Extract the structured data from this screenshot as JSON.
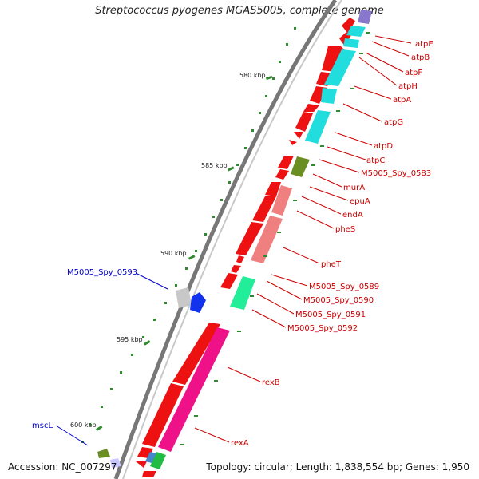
{
  "title": "Streptococcus pyogenes MGAS5005, complete genome",
  "accession": "Accession: NC_007297",
  "summary": "Topology: circular; Length: 1,838,554 bp; Genes: 1,950",
  "colors": {
    "backbone": "#888888",
    "label_red": "#cc0000",
    "label_blue": "#0000cc",
    "tick": "#2e8b2e"
  },
  "kbp_ticks": [
    {
      "kbp": 580,
      "label": "580 kbp"
    },
    {
      "kbp": 585,
      "label": "585 kbp"
    },
    {
      "kbp": 590,
      "label": "590 kbp"
    },
    {
      "kbp": 595,
      "label": "595 kbp"
    },
    {
      "kbp": 600,
      "label": "600 kbp"
    }
  ],
  "gene_labels_right": [
    "atpE",
    "atpB",
    "atpF",
    "atpH",
    "atpA",
    "atpG",
    "atpD",
    "atpC",
    "M5005_Spy_0583",
    "murA",
    "epuA",
    "endA",
    "pheS",
    "pheT",
    "M5005_Spy_0589",
    "M5005_Spy_0590",
    "M5005_Spy_0591",
    "M5005_Spy_0592",
    "rexB",
    "rexA"
  ],
  "gene_labels_left": [
    "M5005_Spy_0593",
    "mscL"
  ]
}
